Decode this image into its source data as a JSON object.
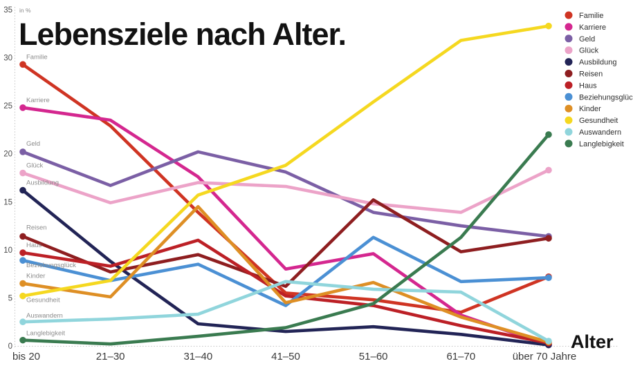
{
  "title": "Lebensziele nach Alter.",
  "y_axis": {
    "unit_label": "in %",
    "ticks": [
      0,
      5,
      10,
      15,
      20,
      25,
      30,
      35
    ]
  },
  "x_axis": {
    "title": "Alter"
  },
  "legend_items": [
    "Familie",
    "Karriere",
    "Geld",
    "Glück",
    "Ausbildung",
    "Reisen",
    "Haus",
    "Beziehungsglück",
    "Kinder",
    "Gesundheit",
    "Auswandern",
    "Langlebigkeit"
  ],
  "chart_data": {
    "type": "line",
    "title": "Lebensziele nach Alter.",
    "ylabel": "in %",
    "xlabel": "Alter",
    "ylim": [
      0,
      35
    ],
    "grid": false,
    "legend_position": "top-right",
    "categories": [
      "bis 20",
      "21–30",
      "31–40",
      "41–50",
      "51–60",
      "61–70",
      "über 70 Jahre"
    ],
    "series": [
      {
        "name": "Familie",
        "color": "#cf3423",
        "values": [
          29.3,
          22.9,
          13.9,
          5.5,
          4.8,
          3.5,
          7.2
        ]
      },
      {
        "name": "Karriere",
        "color": "#d4278f",
        "values": [
          24.8,
          23.5,
          17.6,
          8.0,
          9.6,
          3.2,
          0.1
        ]
      },
      {
        "name": "Geld",
        "color": "#7b5fa5",
        "values": [
          20.2,
          16.7,
          20.2,
          18.1,
          13.9,
          12.5,
          11.4
        ]
      },
      {
        "name": "Glück",
        "color": "#eca3c8",
        "values": [
          18.0,
          14.9,
          17.0,
          16.6,
          14.8,
          13.9,
          18.3
        ]
      },
      {
        "name": "Ausbildung",
        "color": "#222456",
        "values": [
          16.2,
          8.8,
          2.3,
          1.5,
          2.0,
          1.2,
          0.1
        ]
      },
      {
        "name": "Reisen",
        "color": "#8e1e20",
        "values": [
          11.4,
          7.7,
          9.5,
          6.2,
          15.2,
          9.8,
          11.2
        ]
      },
      {
        "name": "Haus",
        "color": "#bc2026",
        "values": [
          9.7,
          8.3,
          11.0,
          5.2,
          4.2,
          2.1,
          0.3
        ]
      },
      {
        "name": "Beziehungsglück",
        "color": "#4b90d4",
        "values": [
          8.9,
          6.8,
          8.5,
          4.2,
          11.3,
          6.7,
          7.1
        ]
      },
      {
        "name": "Kinder",
        "color": "#de8f25",
        "values": [
          6.5,
          5.1,
          14.5,
          4.5,
          6.6,
          3.0,
          0.4
        ]
      },
      {
        "name": "Gesundheit",
        "color": "#f5d820",
        "values": [
          5.2,
          6.8,
          15.7,
          18.8,
          25.4,
          31.8,
          33.3
        ]
      },
      {
        "name": "Auswandern",
        "color": "#90d5dc",
        "values": [
          2.5,
          2.8,
          3.3,
          6.7,
          5.9,
          5.6,
          0.5
        ]
      },
      {
        "name": "Langlebigkeit",
        "color": "#3a7b50",
        "values": [
          0.6,
          0.2,
          1.0,
          1.9,
          4.4,
          11.3,
          22.0
        ]
      }
    ]
  }
}
